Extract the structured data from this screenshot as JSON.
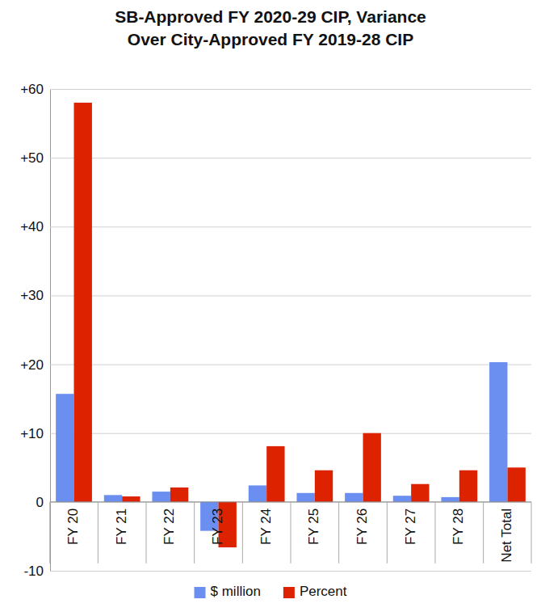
{
  "chart_data": {
    "type": "bar",
    "title": "SB-Approved FY 2020-29 CIP, Variance\nOver City-Approved FY 2019-28 CIP",
    "categories": [
      "FY 20",
      "FY 21",
      "FY 22",
      "FY 23",
      "FY 24",
      "FY 25",
      "FY 26",
      "FY 27",
      "FY 28",
      "Net Total"
    ],
    "series": [
      {
        "name": "$ million",
        "color": "#6b8ff0",
        "values": [
          15.7,
          1.0,
          1.5,
          -4.2,
          2.4,
          1.3,
          1.3,
          0.9,
          0.7,
          20.3
        ]
      },
      {
        "name": "Percent",
        "color": "#dd2200",
        "values": [
          58.0,
          0.8,
          2.1,
          -6.6,
          8.1,
          4.6,
          10.0,
          2.6,
          4.6,
          5.0
        ]
      }
    ],
    "ylim": [
      -10,
      60
    ],
    "yticks": [
      -10,
      0,
      {
        "value": 10,
        "label": "+10"
      },
      {
        "value": 20,
        "label": "+20"
      },
      {
        "value": 30,
        "label": "+30"
      },
      {
        "value": 40,
        "label": "+40"
      },
      {
        "value": 50,
        "label": "+50"
      },
      {
        "value": 60,
        "label": "+60"
      }
    ],
    "grid": true,
    "legend": "bottom"
  }
}
